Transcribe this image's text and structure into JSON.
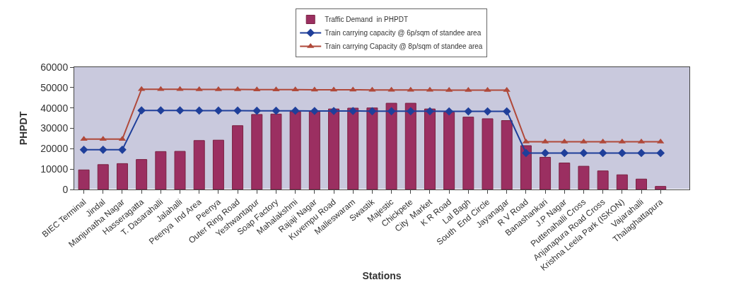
{
  "chart_data": {
    "type": "bar",
    "xlabel": "Stations",
    "ylabel": "PHPDT",
    "categories": [
      "BIEC Terminal",
      "Jindal",
      "Manjunatha Nagar",
      "Hasseragatta",
      "T. Dasarahalli",
      "Jalahalli",
      "Peenya  Ind Area",
      "Peenya",
      "Outer Ring Road",
      "Yeshwantapur",
      "Soap Factory",
      "Mahalakshmi",
      "Rajaji Nagar",
      "Kuvempu Road",
      "Malleswaram",
      "Swastik",
      "Majestic",
      "Chickpete",
      "City  Market",
      "K R Road",
      "Lal Bagh",
      "South  End Circle",
      "Jayanagar",
      "R V Road",
      "Banashankari",
      "J.P Nagar",
      "Puttenahalli Cross",
      "Anjanapura Road Cross",
      "Krishna Leela Park (ISKON)",
      "Vajarahalli",
      "Thalaghattapura"
    ],
    "series": [
      {
        "name": "Traffic Demand  in PHPDT",
        "color": "#9b2f61",
        "values": [
          9600,
          12200,
          12700,
          14700,
          18600,
          18700,
          24000,
          24200,
          31300,
          36800,
          37000,
          38200,
          38300,
          39500,
          39900,
          40000,
          42300,
          42300,
          39500,
          37900,
          35500,
          34700,
          33800,
          21500,
          15800,
          13000,
          11400,
          9100,
          7200,
          5100,
          1500
        ]
      },
      {
        "name": "Train carrying capacity @ 6p/sqm of standee area",
        "type": "line",
        "marker": "diamond",
        "color": "#1f3f9a",
        "values": [
          19500,
          19500,
          19500,
          38800,
          38800,
          38800,
          38700,
          38700,
          38700,
          38600,
          38600,
          38600,
          38500,
          38500,
          38500,
          38400,
          38400,
          38400,
          38400,
          38300,
          38300,
          38300,
          38300,
          17900,
          17900,
          17900,
          17900,
          17900,
          17900,
          17900,
          17900
        ]
      },
      {
        "name": "Train carrying Capacity @ 8p/sqm of standee area",
        "type": "line",
        "marker": "triangle",
        "color": "#b0493a",
        "values": [
          24700,
          24700,
          24700,
          49200,
          49200,
          49200,
          49100,
          49100,
          49100,
          49000,
          49000,
          49000,
          48900,
          48900,
          48900,
          48800,
          48800,
          48800,
          48800,
          48700,
          48700,
          48700,
          48700,
          23400,
          23400,
          23400,
          23400,
          23400,
          23400,
          23400,
          23400
        ]
      }
    ],
    "ylim": [
      0,
      60000
    ],
    "yticks": [
      0,
      10000,
      20000,
      30000,
      40000,
      50000,
      60000
    ],
    "grid": false,
    "legend": "top"
  }
}
